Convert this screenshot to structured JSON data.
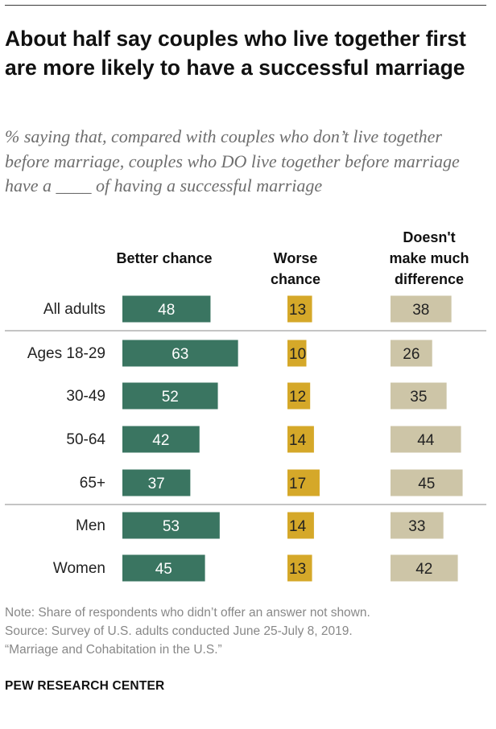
{
  "title": "About half say couples who live together first are more likely to have a successful marriage",
  "subtitle": "% saying that, compared with couples who don’t live together before marriage, couples who DO live together before marriage have a ____ of having a successful marriage",
  "notes": [
    "Note: Share of respondents who didn’t offer an answer not shown.",
    "Source: Survey of U.S. adults conducted June 25-July 8, 2019.",
    "“Marriage and Cohabitation in the U.S.”"
  ],
  "brand": "PEW RESEARCH CENTER",
  "colors": {
    "better": "#3a7561",
    "worse": "#d5a829",
    "no_difference": "#cdc5a7",
    "label_on_dark": "#ffffff",
    "label_on_light": "#222222"
  },
  "chart_data": {
    "type": "bar",
    "categories": [
      "All adults",
      "Ages 18-29",
      "30-49",
      "50-64",
      "65+",
      "Men",
      "Women"
    ],
    "series": [
      {
        "name": "Better chance",
        "values": [
          48,
          63,
          52,
          42,
          37,
          53,
          45
        ]
      },
      {
        "name": "Worse chance",
        "values": [
          13,
          10,
          12,
          14,
          17,
          14,
          13
        ]
      },
      {
        "name": "Doesn't make much difference",
        "values": [
          38,
          26,
          35,
          44,
          45,
          33,
          42
        ]
      }
    ],
    "unit": "%",
    "grid": false,
    "legend": "column headers above bars"
  }
}
